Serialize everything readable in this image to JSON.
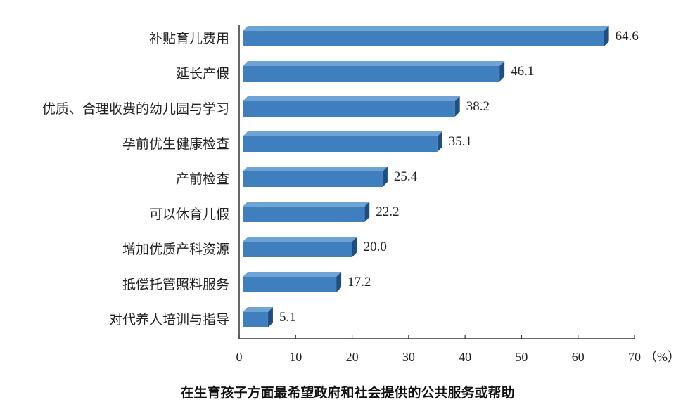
{
  "chart_data": {
    "type": "bar",
    "orientation": "horizontal",
    "title": "在生育孩子方面最希望政府和社会提供的公共服务或帮助",
    "xlabel": "",
    "ylabel": "",
    "unit": "（%）",
    "xlim": [
      0,
      70
    ],
    "xticks": [
      0,
      10,
      20,
      30,
      40,
      50,
      60,
      70
    ],
    "grid": false,
    "categories": [
      "补贴育儿费用",
      "延长产假",
      "优质、合理收费的幼儿园与学习",
      "孕前优生健康检查",
      "产前检查",
      "可以休育儿假",
      "增加优质产科资源",
      "抵偿托管照料服务",
      "对代养人培训与指导"
    ],
    "values": [
      64.6,
      46.1,
      38.2,
      35.1,
      25.4,
      22.2,
      20.0,
      17.2,
      5.1
    ],
    "value_labels": [
      "64.6",
      "46.1",
      "38.2",
      "35.1",
      "25.4",
      "22.2",
      "20.0",
      "17.2",
      "5.1"
    ],
    "bar_color": "#3f7fbd",
    "bar_side_color": "#1f4f80",
    "bar_top_color": "#6ea3d6"
  }
}
